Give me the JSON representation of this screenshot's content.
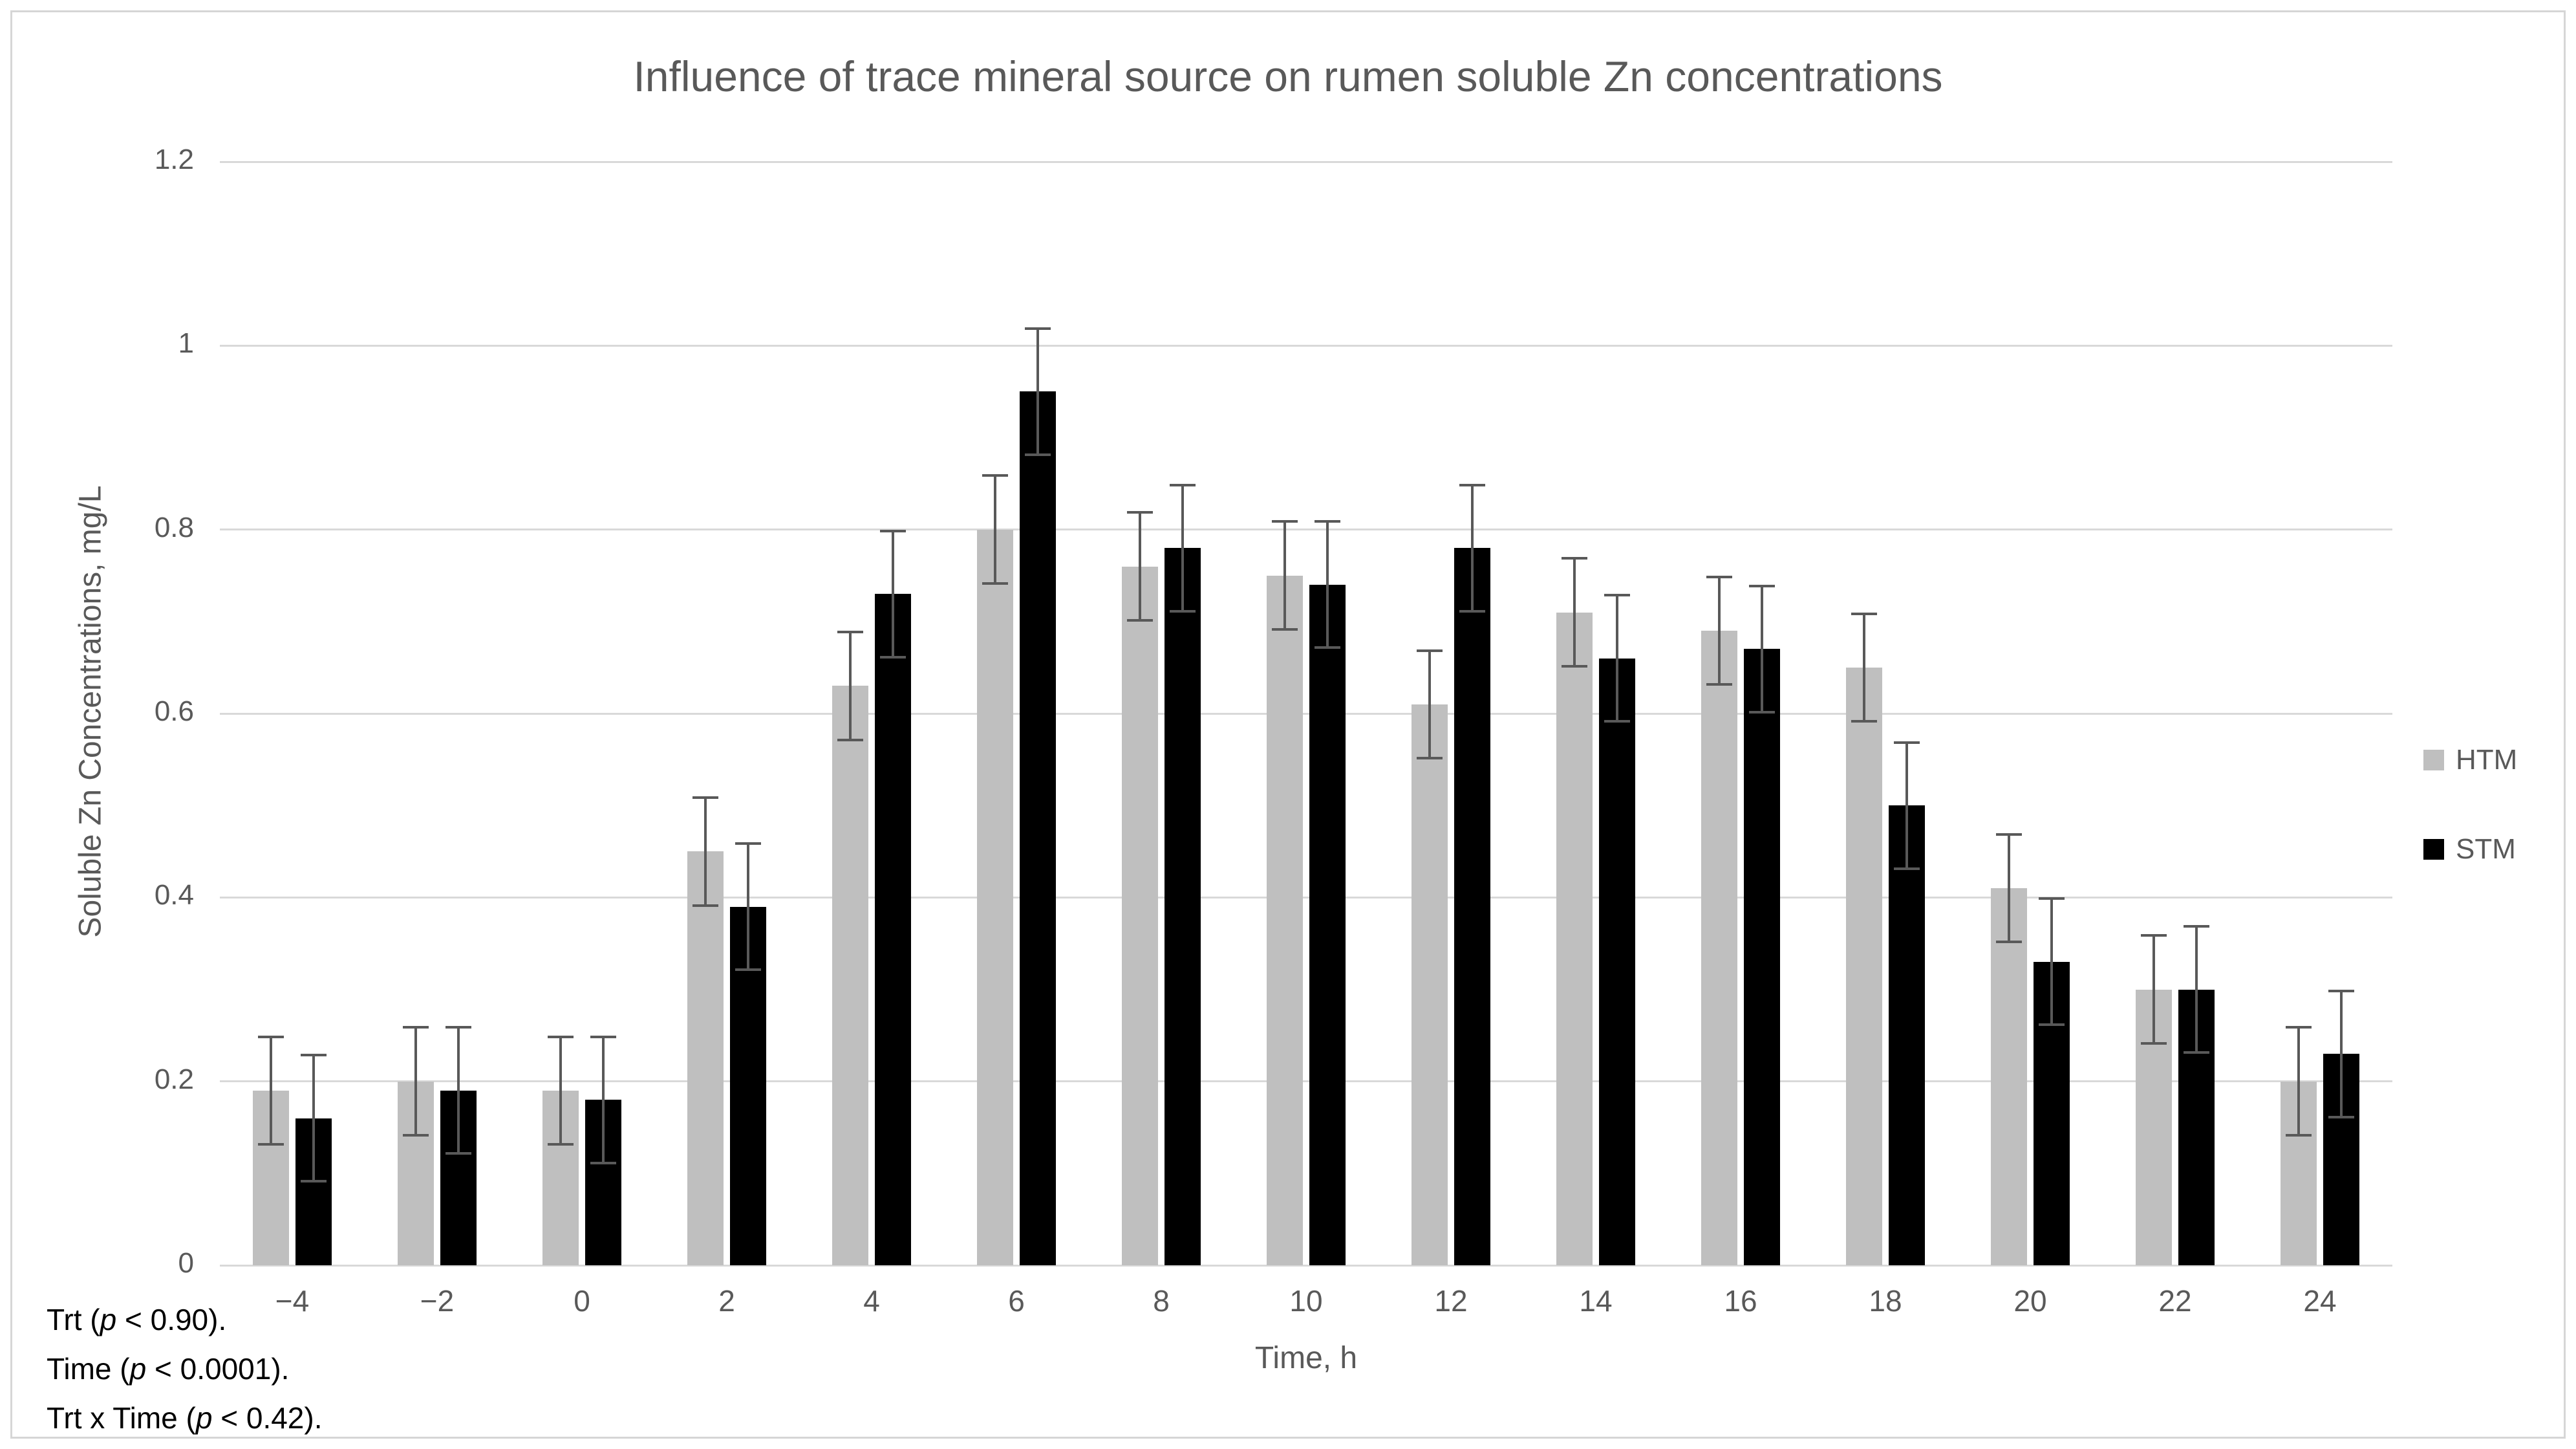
{
  "chart_data": {
    "type": "bar",
    "title": "Influence of trace mineral source on rumen soluble Zn concentrations",
    "xlabel": "Time, h",
    "ylabel": "Soluble Zn Concentrations, mg/L",
    "categories": [
      "−4",
      "−2",
      "0",
      "2",
      "4",
      "6",
      "8",
      "10",
      "12",
      "14",
      "16",
      "18",
      "20",
      "22",
      "24"
    ],
    "series": [
      {
        "name": "HTM",
        "color": "#bfbfbf",
        "values": [
          0.19,
          0.2,
          0.19,
          0.45,
          0.63,
          0.8,
          0.76,
          0.75,
          0.61,
          0.71,
          0.69,
          0.65,
          0.41,
          0.3,
          0.2
        ],
        "errors": [
          0.06,
          0.06,
          0.06,
          0.06,
          0.06,
          0.06,
          0.06,
          0.06,
          0.06,
          0.06,
          0.06,
          0.06,
          0.06,
          0.06,
          0.06
        ]
      },
      {
        "name": "STM",
        "color": "#000000",
        "values": [
          0.16,
          0.19,
          0.18,
          0.39,
          0.73,
          0.95,
          0.78,
          0.74,
          0.78,
          0.66,
          0.67,
          0.5,
          0.33,
          0.3,
          0.23
        ],
        "errors": [
          0.07,
          0.07,
          0.07,
          0.07,
          0.07,
          0.07,
          0.07,
          0.07,
          0.07,
          0.07,
          0.07,
          0.07,
          0.07,
          0.07,
          0.07
        ]
      }
    ],
    "ylim": [
      0,
      1.2
    ],
    "yticks": [
      {
        "value": 1.2,
        "label": "1.2"
      },
      {
        "value": 1.0,
        "label": "1"
      },
      {
        "value": 0.8,
        "label": "0.8"
      },
      {
        "value": 0.6,
        "label": "0.6"
      },
      {
        "value": 0.4,
        "label": "0.4"
      },
      {
        "value": 0.2,
        "label": "0.2"
      },
      {
        "value": 0.0,
        "label": "0"
      }
    ],
    "grid": true,
    "legend_position": "right",
    "error_bar_color": "#595959",
    "gridline_color": "#d9d9d9",
    "text_color": "#595959"
  },
  "annotations": [
    {
      "pre": "Trt (",
      "italic": "p",
      "post": " < 0.90)."
    },
    {
      "pre": "Time (",
      "italic": "p",
      "post": " < 0.0001)."
    },
    {
      "pre": "Trt x Time (",
      "italic": "p",
      "post": " < 0.42)."
    }
  ]
}
